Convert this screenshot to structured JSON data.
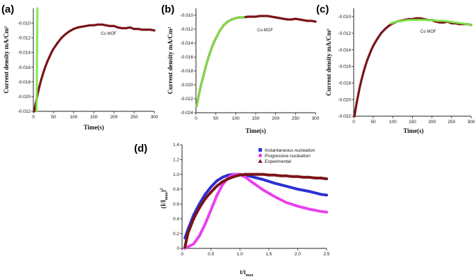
{
  "chart_data": [
    {
      "panel": "(a)",
      "type": "scatter",
      "xlabel": "Time(s)",
      "ylabel": "Current density mA/Cm²",
      "xlim": [
        0,
        300
      ],
      "ylim": [
        -0.022,
        -0.008
      ],
      "xticks": [
        "0",
        "50",
        "100",
        "150",
        "200",
        "250",
        "300"
      ],
      "yticks": [
        "-0.022",
        "-0.020",
        "-0.018",
        "-0.016",
        "-0.014",
        "-0.012",
        "-0.010"
      ],
      "annotation": "Co MOF",
      "colors": {
        "experimental": "#7a1418",
        "fit": "#7de84a"
      },
      "series": [
        {
          "role": "experimental",
          "x": [
            2,
            5,
            8,
            12,
            16,
            20,
            25,
            30,
            35,
            40,
            45,
            50,
            60,
            70,
            80,
            90,
            100,
            110,
            120,
            130,
            140,
            150,
            160,
            170,
            180,
            190,
            200,
            210,
            220,
            230,
            240,
            250,
            260,
            270,
            280,
            290,
            300
          ],
          "y": [
            -0.022,
            -0.0212,
            -0.0204,
            -0.0193,
            -0.0184,
            -0.0176,
            -0.0167,
            -0.0159,
            -0.0152,
            -0.0146,
            -0.014,
            -0.0135,
            -0.0127,
            -0.012,
            -0.0115,
            -0.0111,
            -0.0108,
            -0.0106,
            -0.0105,
            -0.0104,
            -0.0103,
            -0.0103,
            -0.0102,
            -0.0102,
            -0.0103,
            -0.0104,
            -0.0104,
            -0.0106,
            -0.0107,
            -0.0107,
            -0.0106,
            -0.0108,
            -0.0108,
            -0.0109,
            -0.0109,
            -0.0109,
            -0.011
          ]
        },
        {
          "role": "fit",
          "x": [
            8,
            8.4,
            8.8,
            9.2,
            9.6,
            10
          ],
          "y": [
            -0.022,
            -0.0195,
            -0.017,
            -0.014,
            -0.011,
            -0.008
          ]
        }
      ]
    },
    {
      "panel": "(b)",
      "type": "scatter",
      "xlabel": "Time(s)",
      "ylabel": "Current density mA/Cm²",
      "xlim": [
        0,
        300
      ],
      "ylim": [
        -0.024,
        -0.009
      ],
      "xticks": [
        "0",
        "50",
        "100",
        "150",
        "200",
        "250",
        "300"
      ],
      "yticks": [
        "-0.024",
        "-0.022",
        "-0.020",
        "-0.018",
        "-0.016",
        "-0.014",
        "-0.012",
        "-0.010"
      ],
      "annotation": "Co-MOF",
      "colors": {
        "experimental": "#7a1418",
        "fit": "#7de84a"
      },
      "series": [
        {
          "role": "experimental",
          "x": [
            2,
            6,
            10,
            15,
            20,
            25,
            30,
            35,
            40,
            45,
            50,
            60,
            70,
            80,
            90,
            100,
            110,
            120,
            130,
            140,
            150,
            160,
            170,
            180,
            190,
            200,
            210,
            220,
            230,
            240,
            250,
            260,
            270,
            280,
            290,
            300
          ],
          "y": [
            -0.023,
            -0.0218,
            -0.0207,
            -0.0195,
            -0.0184,
            -0.0173,
            -0.0163,
            -0.0154,
            -0.0146,
            -0.0139,
            -0.0133,
            -0.0122,
            -0.0114,
            -0.0109,
            -0.0106,
            -0.0104,
            -0.0103,
            -0.0103,
            -0.0102,
            -0.0102,
            -0.0102,
            -0.0101,
            -0.0101,
            -0.0101,
            -0.0102,
            -0.0103,
            -0.0104,
            -0.0105,
            -0.0106,
            -0.0106,
            -0.0105,
            -0.0106,
            -0.0107,
            -0.0108,
            -0.0108,
            -0.0109
          ]
        },
        {
          "role": "fit",
          "x": [
            2,
            6,
            10,
            15,
            20,
            25,
            30,
            35,
            40,
            45,
            50,
            60,
            70,
            80,
            90,
            100,
            110,
            120
          ],
          "y": [
            -0.023,
            -0.0218,
            -0.0207,
            -0.0195,
            -0.0184,
            -0.0173,
            -0.0163,
            -0.0154,
            -0.0146,
            -0.0139,
            -0.0133,
            -0.0122,
            -0.0114,
            -0.0109,
            -0.0106,
            -0.0104,
            -0.0103,
            -0.0103
          ]
        }
      ]
    },
    {
      "panel": "(c)",
      "type": "scatter",
      "xlabel": "Time(s)",
      "ylabel": "Current density mA/Cm²",
      "xlim": [
        0,
        300
      ],
      "ylim": [
        -0.022,
        -0.009
      ],
      "xticks": [
        "0",
        "50",
        "100",
        "150",
        "200",
        "250",
        "300"
      ],
      "yticks": [
        "-0.022",
        "-0.020",
        "-0.018",
        "-0.016",
        "-0.014",
        "-0.012",
        "-0.010"
      ],
      "annotation": "Co MOF",
      "colors": {
        "experimental": "#7a1418",
        "fit": "#7de84a"
      },
      "series": [
        {
          "role": "experimental",
          "x": [
            2,
            5,
            8,
            12,
            16,
            20,
            25,
            30,
            35,
            40,
            45,
            50,
            60,
            70,
            80,
            90,
            100,
            110,
            120,
            130,
            140,
            150,
            160,
            170,
            180,
            190,
            200,
            210,
            220,
            230,
            240,
            250,
            260,
            270,
            280,
            290,
            300
          ],
          "y": [
            -0.022,
            -0.0211,
            -0.0203,
            -0.0193,
            -0.0184,
            -0.0176,
            -0.0167,
            -0.0159,
            -0.0152,
            -0.0146,
            -0.014,
            -0.0135,
            -0.0127,
            -0.012,
            -0.0115,
            -0.0111,
            -0.0108,
            -0.0106,
            -0.0105,
            -0.0104,
            -0.0103,
            -0.0103,
            -0.0102,
            -0.0102,
            -0.0103,
            -0.0104,
            -0.0104,
            -0.0106,
            -0.0107,
            -0.0107,
            -0.0106,
            -0.0108,
            -0.0108,
            -0.0109,
            -0.0109,
            -0.0109,
            -0.011
          ]
        },
        {
          "role": "fit",
          "x": [
            95,
            110,
            125,
            140,
            155,
            170,
            185,
            200,
            215,
            230,
            245,
            260,
            275,
            290,
            300
          ],
          "y": [
            -0.0108,
            -0.0106,
            -0.0105,
            -0.0104,
            -0.0104,
            -0.0104,
            -0.0104,
            -0.0104,
            -0.0105,
            -0.0105,
            -0.0106,
            -0.0107,
            -0.0108,
            -0.0109,
            -0.011
          ]
        }
      ]
    },
    {
      "panel": "(d)",
      "type": "line",
      "xlabel": "t/t",
      "xlabel_sub": "max",
      "ylabel": "(I/I",
      "ylabel_sub": "max",
      "ylabel_tail": ")",
      "ylabel_sup": "2",
      "xlim": [
        0,
        2.5
      ],
      "ylim": [
        0,
        1.4
      ],
      "xticks": [
        "0",
        "0.5",
        "1.0",
        "1.5",
        "2.0",
        "2.5"
      ],
      "yticks": [
        "0",
        "0.2",
        "0.4",
        "0.6",
        "0.8",
        "1.0",
        "1.2",
        "1.4"
      ],
      "legend_position": "top-right",
      "series": [
        {
          "name": "Instantaneous nucleation",
          "color": "#2d2fd0",
          "marker": "square",
          "x": [
            0.05,
            0.1,
            0.2,
            0.3,
            0.4,
            0.5,
            0.6,
            0.7,
            0.8,
            0.9,
            1.0,
            1.1,
            1.2,
            1.4,
            1.6,
            1.8,
            2.0,
            2.2,
            2.4,
            2.5
          ],
          "y": [
            0.14,
            0.25,
            0.45,
            0.6,
            0.73,
            0.83,
            0.91,
            0.96,
            0.99,
            1.0,
            1.0,
            0.99,
            0.97,
            0.93,
            0.88,
            0.84,
            0.8,
            0.77,
            0.73,
            0.72
          ]
        },
        {
          "name": "Progressive nucleation",
          "color": "#ea3ff0",
          "marker": "circle",
          "x": [
            0.05,
            0.1,
            0.2,
            0.3,
            0.4,
            0.5,
            0.6,
            0.7,
            0.8,
            0.9,
            1.0,
            1.1,
            1.2,
            1.4,
            1.6,
            1.8,
            2.0,
            2.2,
            2.4,
            2.5
          ],
          "y": [
            0.0,
            0.02,
            0.06,
            0.17,
            0.33,
            0.52,
            0.71,
            0.86,
            0.96,
            1.0,
            1.0,
            0.96,
            0.9,
            0.79,
            0.7,
            0.62,
            0.57,
            0.53,
            0.5,
            0.49
          ]
        },
        {
          "name": "Experimental",
          "color": "#7a1418",
          "marker": "triangle",
          "x": [
            0.05,
            0.1,
            0.2,
            0.3,
            0.4,
            0.5,
            0.6,
            0.7,
            0.8,
            0.9,
            1.0,
            1.1,
            1.2,
            1.3,
            1.4,
            1.5,
            1.6,
            1.7,
            1.8,
            1.9,
            2.0,
            2.1,
            2.2,
            2.3,
            2.4,
            2.5
          ],
          "y": [
            0.02,
            0.2,
            0.4,
            0.55,
            0.67,
            0.76,
            0.84,
            0.9,
            0.94,
            0.97,
            0.99,
            1.0,
            1.0,
            1.0,
            1.0,
            0.99,
            0.99,
            0.98,
            0.98,
            0.97,
            0.97,
            0.96,
            0.96,
            0.95,
            0.95,
            0.94
          ]
        }
      ]
    }
  ]
}
